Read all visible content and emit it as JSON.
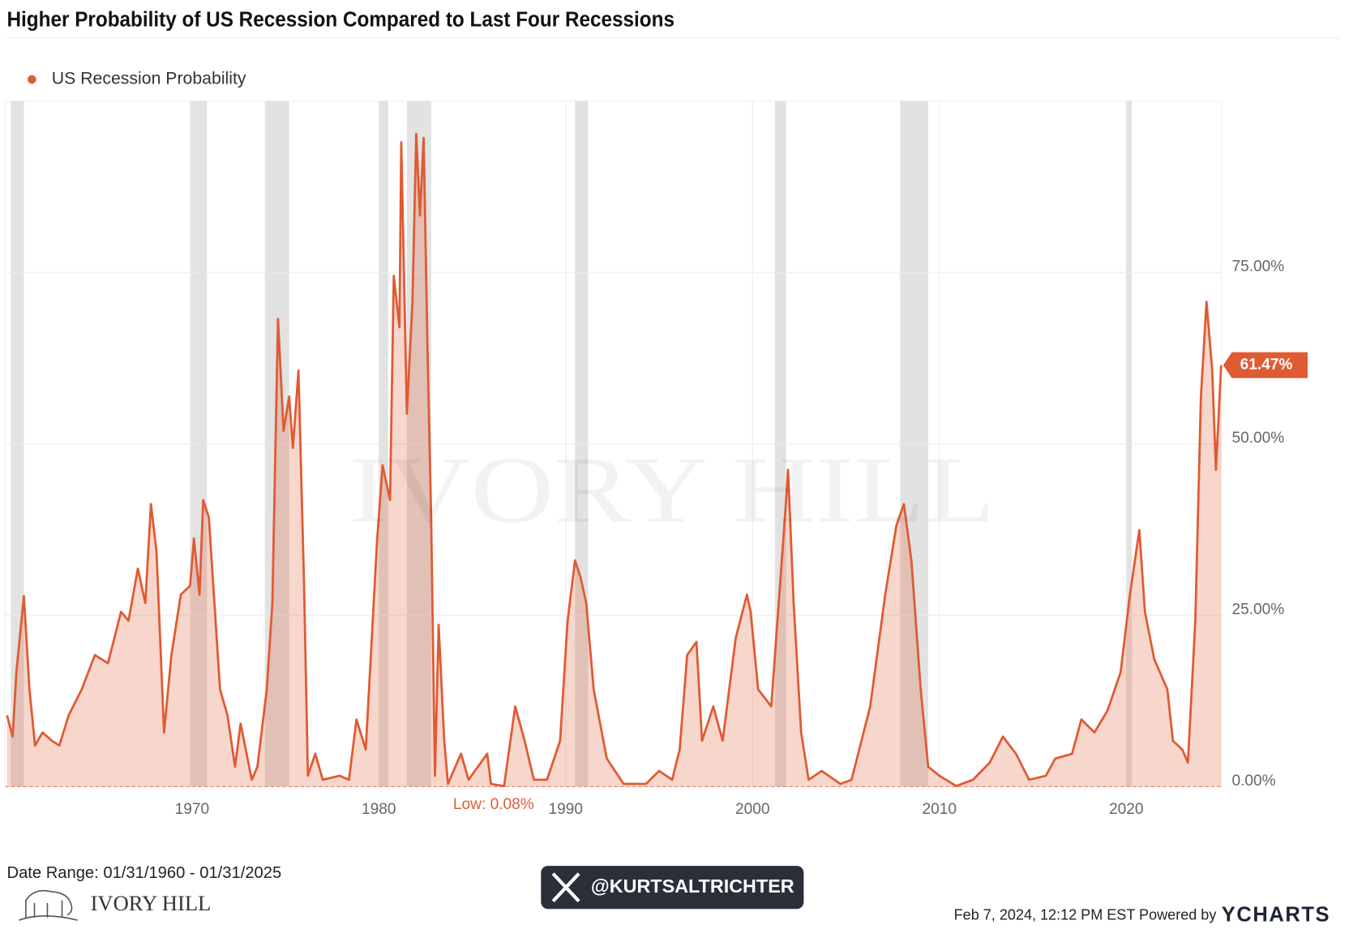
{
  "chart_data": {
    "type": "area",
    "title": "Higher Probability of US Recession Compared to Last Four Recessions",
    "x": [
      1960.1,
      1960.4,
      1960.6,
      1961.0,
      1961.3,
      1961.6,
      1962.0,
      1962.5,
      1962.9,
      1963.4,
      1964.1,
      1964.8,
      1965.5,
      1966.2,
      1966.6,
      1967.1,
      1967.5,
      1967.8,
      1968.1,
      1968.5,
      1968.9,
      1969.4,
      1969.9,
      1970.1,
      1970.4,
      1970.6,
      1970.9,
      1971.2,
      1971.5,
      1971.9,
      1972.3,
      1972.6,
      1973.2,
      1973.5,
      1974.0,
      1974.3,
      1974.6,
      1974.9,
      1975.2,
      1975.4,
      1975.7,
      1976.0,
      1976.2,
      1976.6,
      1977.0,
      1977.9,
      1978.4,
      1978.8,
      1979.3,
      1979.9,
      1980.2,
      1980.6,
      1980.8,
      1981.1,
      1981.2,
      1981.5,
      1981.8,
      1982.0,
      1982.2,
      1982.4,
      1982.6,
      1982.8,
      1983.0,
      1983.2,
      1983.5,
      1983.7,
      1984.4,
      1984.8,
      1985.8,
      1986.0,
      1986.7,
      1987.3,
      1987.8,
      1988.3,
      1989.0,
      1989.7,
      1990.1,
      1990.5,
      1990.8,
      1991.1,
      1991.5,
      1992.2,
      1993.1,
      1994.3,
      1995.0,
      1995.7,
      1996.1,
      1996.5,
      1997.0,
      1997.3,
      1997.9,
      1998.4,
      1999.1,
      1999.7,
      1999.9,
      2000.3,
      2001.0,
      2001.4,
      2001.8,
      2001.9,
      2002.2,
      2002.6,
      2003.0,
      2003.7,
      2004.7,
      2005.3,
      2006.3,
      2007.1,
      2007.7,
      2008.1,
      2008.5,
      2009.0,
      2009.4,
      2010.0,
      2010.9,
      2011.8,
      2012.7,
      2013.4,
      2014.1,
      2014.8,
      2015.7,
      2016.2,
      2017.1,
      2017.6,
      2018.3,
      2019.0,
      2019.7,
      2020.2,
      2020.7,
      2021.0,
      2021.5,
      2022.2,
      2022.5,
      2023.0,
      2023.3,
      2023.7,
      2024.0,
      2024.3,
      2024.6,
      2024.8,
      2025.08
    ],
    "series": [
      {
        "name": "US Recession Probability",
        "color": "#e05a33",
        "values": [
          10.4,
          7.3,
          16.7,
          27.8,
          14.2,
          6.0,
          7.9,
          6.7,
          6.0,
          10.4,
          14.2,
          19.2,
          18.0,
          25.5,
          24.2,
          31.8,
          26.8,
          41.2,
          34.3,
          7.9,
          19.2,
          28.0,
          29.3,
          36.2,
          28.0,
          41.8,
          39.3,
          26.8,
          14.2,
          10.4,
          2.9,
          9.2,
          1.0,
          2.9,
          14.2,
          26.8,
          68.2,
          51.9,
          56.9,
          49.4,
          60.7,
          29.3,
          1.6,
          4.8,
          1.0,
          1.6,
          1.0,
          9.8,
          5.4,
          35.6,
          46.9,
          41.8,
          74.5,
          67.0,
          94.0,
          54.4,
          70.7,
          95.2,
          83.3,
          94.6,
          64.4,
          39.3,
          1.6,
          23.6,
          6.7,
          0.4,
          4.8,
          1.0,
          4.8,
          0.4,
          0.08,
          11.7,
          6.7,
          1.0,
          1.0,
          6.7,
          24.2,
          33.0,
          30.5,
          26.8,
          14.2,
          4.1,
          0.4,
          0.4,
          2.3,
          1.0,
          5.4,
          19.2,
          21.1,
          6.7,
          11.7,
          6.7,
          21.7,
          28.0,
          25.5,
          14.2,
          11.7,
          26.8,
          41.8,
          46.2,
          26.8,
          7.9,
          1.0,
          2.3,
          0.4,
          1.0,
          11.7,
          28.0,
          38.1,
          41.2,
          33.0,
          14.2,
          2.9,
          1.6,
          0.1,
          1.0,
          3.5,
          7.3,
          4.8,
          1.0,
          1.6,
          4.1,
          4.8,
          9.8,
          7.9,
          11.1,
          16.7,
          28.0,
          37.4,
          25.5,
          18.6,
          14.2,
          6.7,
          5.4,
          3.5,
          24.2,
          56.9,
          70.7,
          60.7,
          46.2,
          61.47
        ]
      }
    ],
    "xlim": [
      1960,
      2025.1
    ],
    "xticks": [
      1970,
      1980,
      1990,
      2000,
      2010,
      2020
    ],
    "ylim": [
      0,
      100
    ],
    "yticks": [
      {
        "value": 0,
        "label": "0.00%"
      },
      {
        "value": 25,
        "label": "25.00%"
      },
      {
        "value": 50,
        "label": "50.00%"
      },
      {
        "value": 75,
        "label": "75.00%"
      }
    ],
    "grid": true,
    "legend": "top-left",
    "recessions": [
      [
        1960.3,
        1961.0
      ],
      [
        1969.9,
        1970.8
      ],
      [
        1973.9,
        1975.2
      ],
      [
        1980.0,
        1980.5
      ],
      [
        1981.5,
        1982.8
      ],
      [
        1990.5,
        1991.2
      ],
      [
        2001.2,
        2001.8
      ],
      [
        2007.9,
        2009.4
      ],
      [
        2020.0,
        2020.3
      ]
    ],
    "recession_color": "#e2e2e2",
    "last_label": {
      "value": 61.47,
      "label": "61.47%"
    },
    "low_annotation": "Low: 0.08%",
    "watermark": "IVORY HILL",
    "date_range": "Date Range: 01/31/1960 - 01/31/2025",
    "logo": "IVORY HILL",
    "handle": "@KURTSALTRICHTER",
    "footer": "Feb 7, 2024, 12:12 PM EST Powered by",
    "brand": "YCHARTS"
  }
}
